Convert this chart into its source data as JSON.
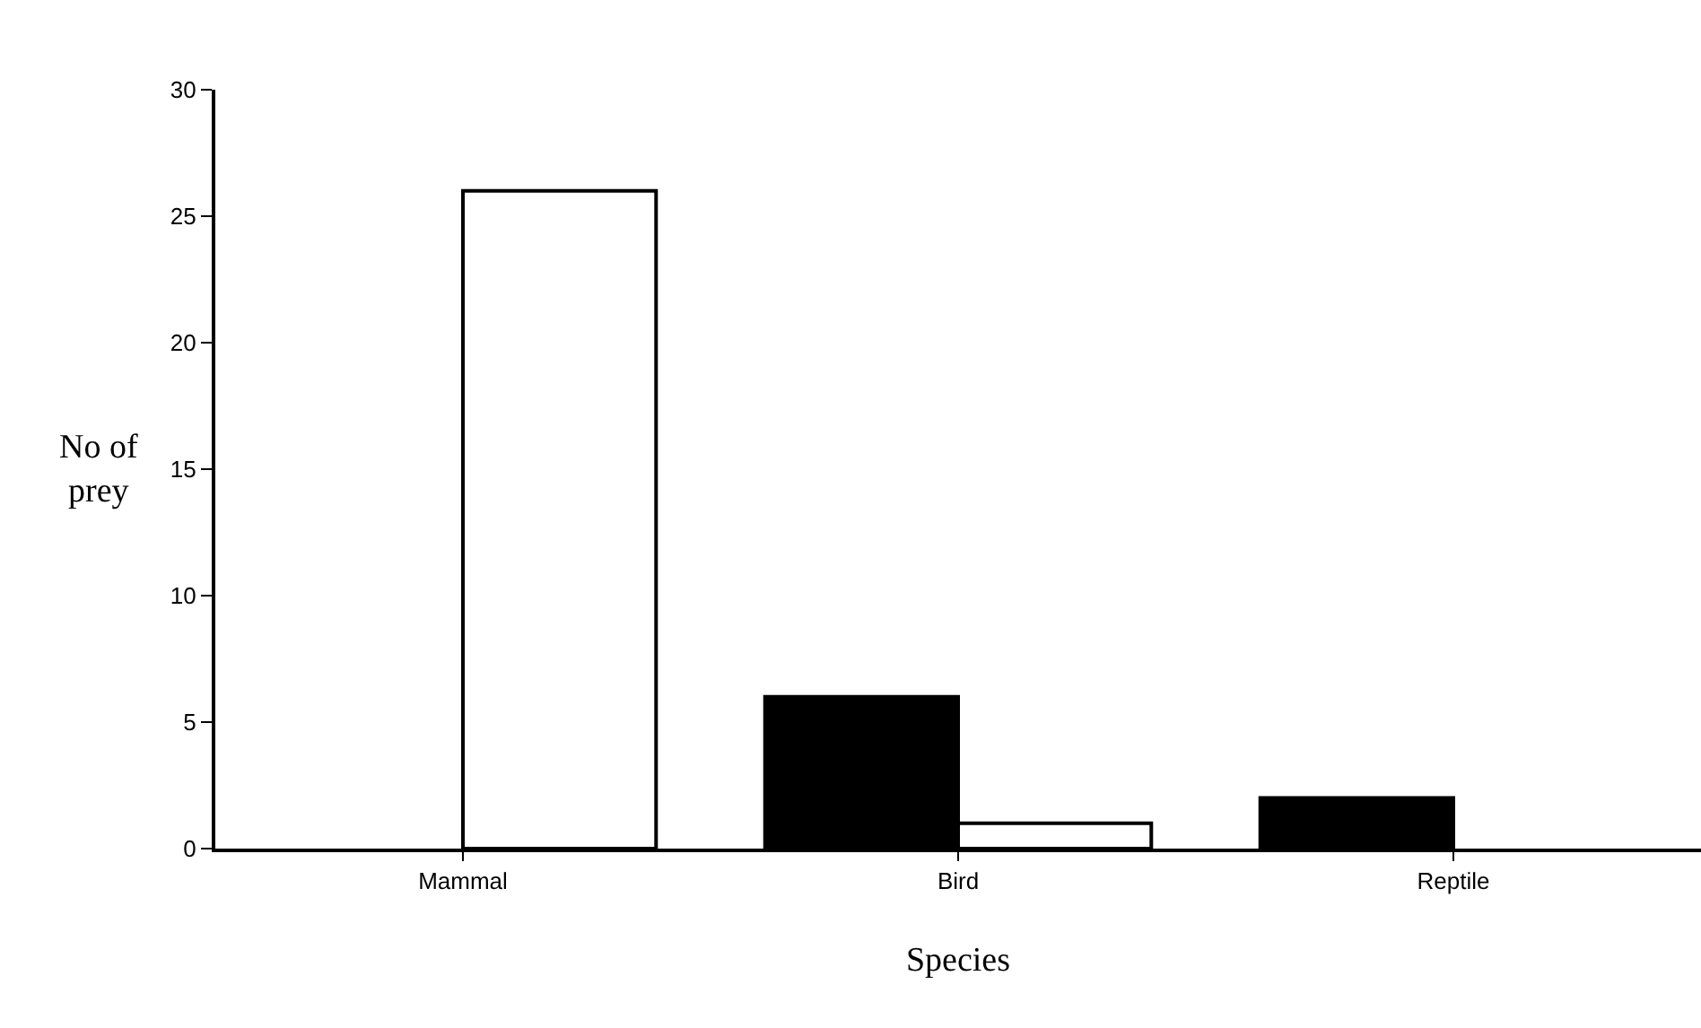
{
  "chart_data": {
    "type": "bar",
    "xlabel": "Species",
    "ylabel": "No of prey",
    "categories": [
      "Mammal",
      "Bird",
      "Reptile"
    ],
    "series": [
      {
        "color": "#000000",
        "values": [
          0,
          6,
          2
        ]
      },
      {
        "color": "#ffffff",
        "values": [
          26,
          1,
          0
        ]
      }
    ],
    "ylim": [
      0,
      30
    ],
    "yticks": [
      0,
      5,
      10,
      15,
      20,
      25,
      30
    ]
  }
}
